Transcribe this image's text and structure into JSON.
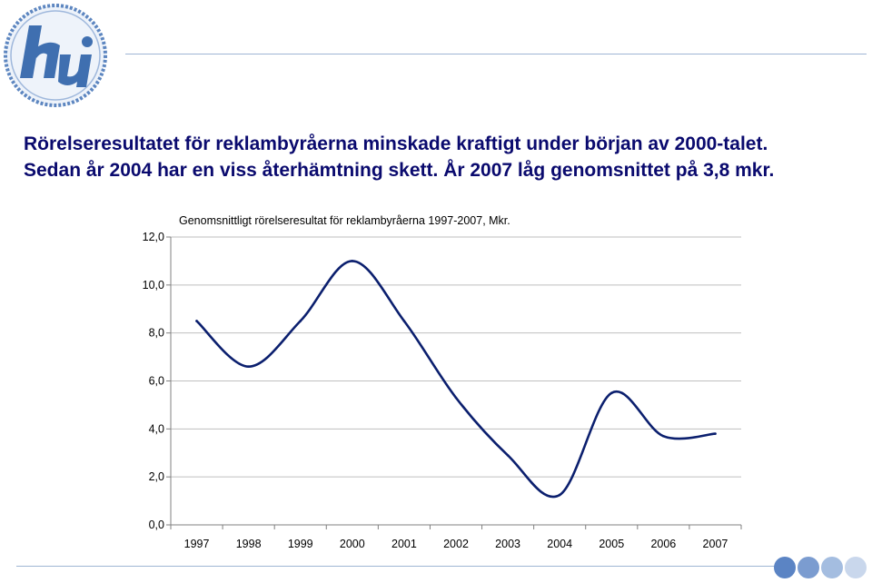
{
  "logo": {
    "icon": "hi-logo",
    "text": "hi",
    "colors": {
      "ring": "#5d86c0",
      "fill": "#3f6fb0",
      "bg": "#eef3fa"
    }
  },
  "heading": {
    "line1": "Rörelseresultatet för reklambyråerna minskade kraftigt under början av 2000-talet.",
    "line2": "Sedan år 2004 har en viss återhämtning skett. År 2007 låg genomsnittet på 3,8 mkr."
  },
  "chart_data": {
    "type": "line",
    "title": "Genomsnittligt rörelseresultat för reklambyråerna 1997-2007, Mkr.",
    "xlabel": "",
    "ylabel": "",
    "categories": [
      "1997",
      "1998",
      "1999",
      "2000",
      "2001",
      "2002",
      "2003",
      "2004",
      "2005",
      "2006",
      "2007"
    ],
    "series": [
      {
        "values": [
          8.5,
          6.6,
          8.5,
          11.0,
          8.5,
          5.3,
          2.9,
          1.25,
          5.5,
          3.7,
          3.8
        ]
      }
    ],
    "yticks": [
      "0,0",
      "2,0",
      "4,0",
      "6,0",
      "8,0",
      "10,0",
      "12,0"
    ],
    "ylim": [
      0,
      12
    ],
    "grid": true,
    "legend": "none",
    "colors": {
      "line": "#0b1f6e",
      "grid": "#bfbfbf",
      "axis": "#808080"
    }
  }
}
